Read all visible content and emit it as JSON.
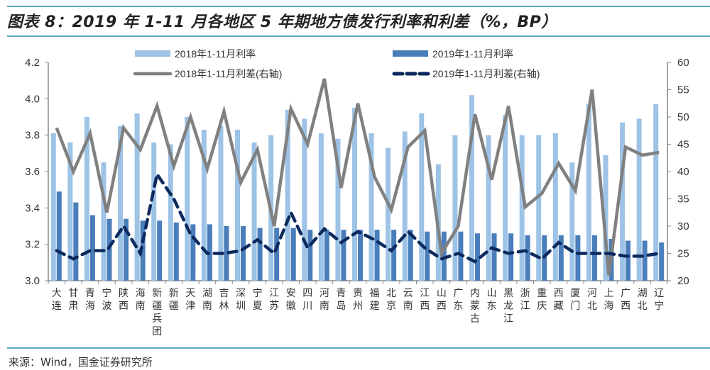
{
  "header": {
    "title": "图表 8：2019 年 1-11 月各地区 5 年期地方债发行利率和利差（%，BP）"
  },
  "footer": {
    "source": "来源：Wind，国金证券研究所"
  },
  "colors": {
    "bar_2018": "#9dc3e6",
    "bar_2019": "#4a7ebb",
    "line_2018": "#808080",
    "line_2019": "#0d2a5e",
    "rule": "#5aa9c9"
  },
  "chart_data": {
    "type": "bar+line",
    "title": "2019 年 1-11 月各地区 5 年期地方债发行利率和利差（%，BP）",
    "xlabel": "",
    "ylabel": "%",
    "y2label": "BP",
    "ylim": [
      3.0,
      4.2
    ],
    "yticks": [
      "3.0",
      "3.2",
      "3.4",
      "3.6",
      "3.8",
      "4.0",
      "4.2"
    ],
    "y2lim": [
      20,
      60
    ],
    "y2ticks": [
      "20",
      "25",
      "30",
      "35",
      "40",
      "45",
      "50",
      "55",
      "60"
    ],
    "grid": false,
    "legend_position": "top",
    "categories": [
      "大连",
      "甘肃",
      "青海",
      "宁波",
      "陕西",
      "海南",
      "新疆兵团",
      "新疆",
      "天津",
      "湖南",
      "吉林",
      "深圳",
      "宁夏",
      "江苏",
      "安徽",
      "四川",
      "河南",
      "青岛",
      "贵州",
      "福建",
      "北京",
      "云南",
      "江西",
      "山西",
      "广东",
      "内蒙古",
      "山东",
      "黑龙江",
      "浙江",
      "重庆",
      "西藏",
      "厦门",
      "河北",
      "上海",
      "广西",
      "湖北",
      "辽宁"
    ],
    "series": [
      {
        "name": "2018年1-11月利率",
        "type": "bar",
        "axis": "left",
        "values": [
          3.81,
          3.76,
          3.9,
          3.65,
          3.85,
          3.92,
          3.76,
          3.75,
          3.9,
          3.83,
          3.85,
          3.83,
          3.76,
          3.8,
          3.94,
          3.89,
          3.81,
          3.78,
          3.95,
          3.81,
          3.73,
          3.82,
          3.92,
          3.64,
          3.8,
          4.02,
          3.8,
          3.91,
          3.8,
          3.8,
          3.81,
          3.65,
          3.97,
          3.69,
          3.87,
          3.89,
          3.97
        ]
      },
      {
        "name": "2019年1-11月利率",
        "type": "bar",
        "axis": "left",
        "values": [
          3.49,
          3.43,
          3.36,
          3.34,
          3.34,
          3.33,
          3.33,
          3.32,
          3.31,
          3.31,
          3.3,
          3.3,
          3.29,
          3.29,
          3.29,
          3.28,
          3.28,
          3.28,
          3.28,
          3.28,
          3.28,
          3.28,
          3.27,
          3.27,
          3.27,
          3.26,
          3.26,
          3.26,
          3.25,
          3.25,
          3.25,
          3.25,
          3.25,
          3.23,
          3.22,
          3.22,
          3.21
        ]
      },
      {
        "name": "2018年1-11月利差(右轴)",
        "type": "line",
        "axis": "right",
        "values": [
          48,
          40,
          47,
          32.5,
          48,
          44,
          52,
          41,
          50,
          40.5,
          51,
          38,
          44,
          30,
          51.5,
          45,
          57,
          37,
          52.5,
          39,
          33,
          44.5,
          47.5,
          25,
          30,
          50.5,
          38.5,
          52,
          33.5,
          36,
          41.5,
          36.5,
          55,
          21,
          44.5,
          43,
          43.5
        ]
      },
      {
        "name": "2019年1-11月利差(右轴)",
        "type": "line",
        "style": "dashed",
        "axis": "right",
        "values": [
          25.5,
          24,
          25.5,
          25.5,
          30,
          25,
          39.5,
          35,
          28.5,
          25,
          25,
          25.5,
          27.5,
          25,
          32.5,
          26,
          29.5,
          27,
          29,
          27.5,
          25.5,
          29,
          26,
          24,
          25,
          23.5,
          26,
          25,
          25.5,
          24,
          27,
          25,
          25,
          25,
          24.5,
          24.5,
          25
        ]
      }
    ]
  }
}
